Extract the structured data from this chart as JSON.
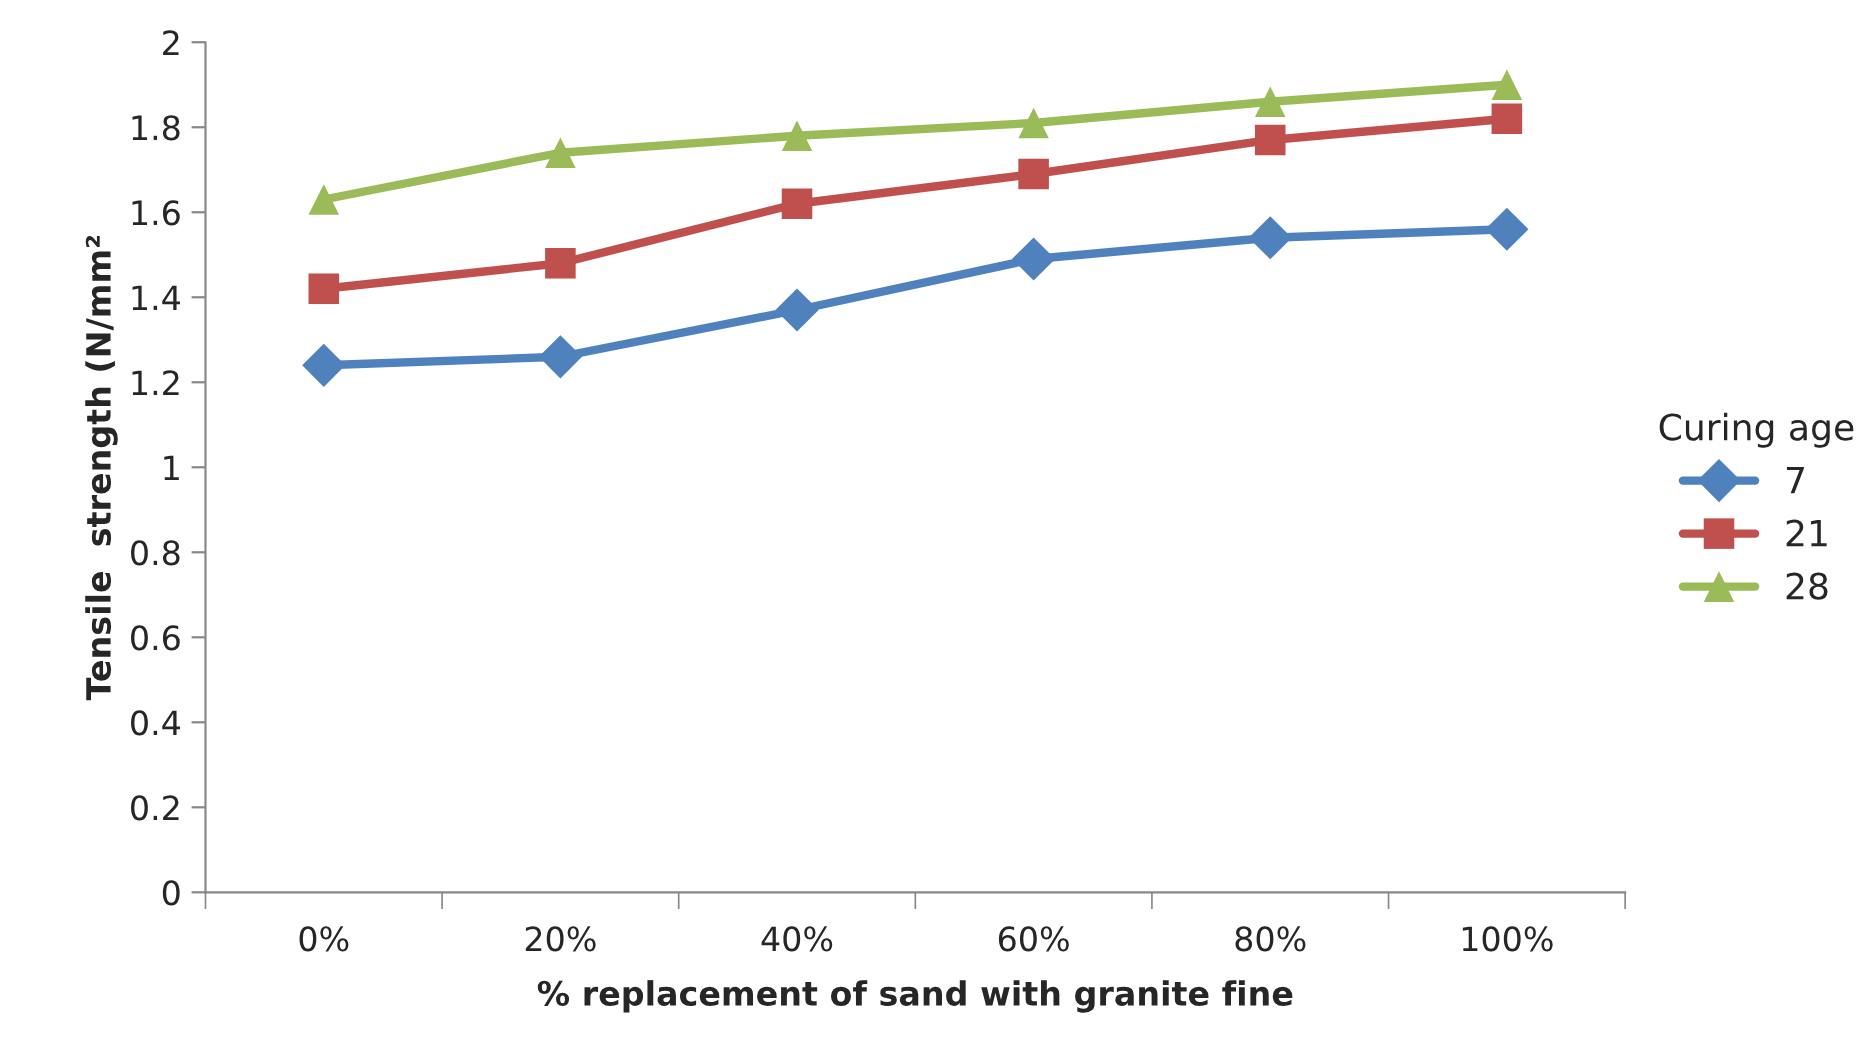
{
  "chart_data": {
    "type": "line",
    "xlabel": "% replacement of sand with granite fine",
    "ylabel": "Tensile  strength (N/mm²",
    "categories": [
      "0%",
      "20%",
      "40%",
      "60%",
      "80%",
      "100%"
    ],
    "series": [
      {
        "name": "7",
        "color": "#4f81bd",
        "marker": "diamond",
        "values": [
          1.24,
          1.26,
          1.37,
          1.49,
          1.54,
          1.56
        ]
      },
      {
        "name": "21",
        "color": "#c0504d",
        "marker": "square",
        "values": [
          1.42,
          1.48,
          1.62,
          1.69,
          1.77,
          1.82
        ]
      },
      {
        "name": "28",
        "color": "#9bbb59",
        "marker": "triangle",
        "values": [
          1.63,
          1.74,
          1.78,
          1.81,
          1.86,
          1.9
        ]
      }
    ],
    "legend_title": "Curing age",
    "legend": "right",
    "ylim": [
      0,
      2
    ],
    "yticks": [
      0,
      0.2,
      0.4,
      0.6,
      0.8,
      1,
      1.2,
      1.4,
      1.6,
      1.8,
      2
    ],
    "grid": false,
    "line_style": "solid"
  }
}
